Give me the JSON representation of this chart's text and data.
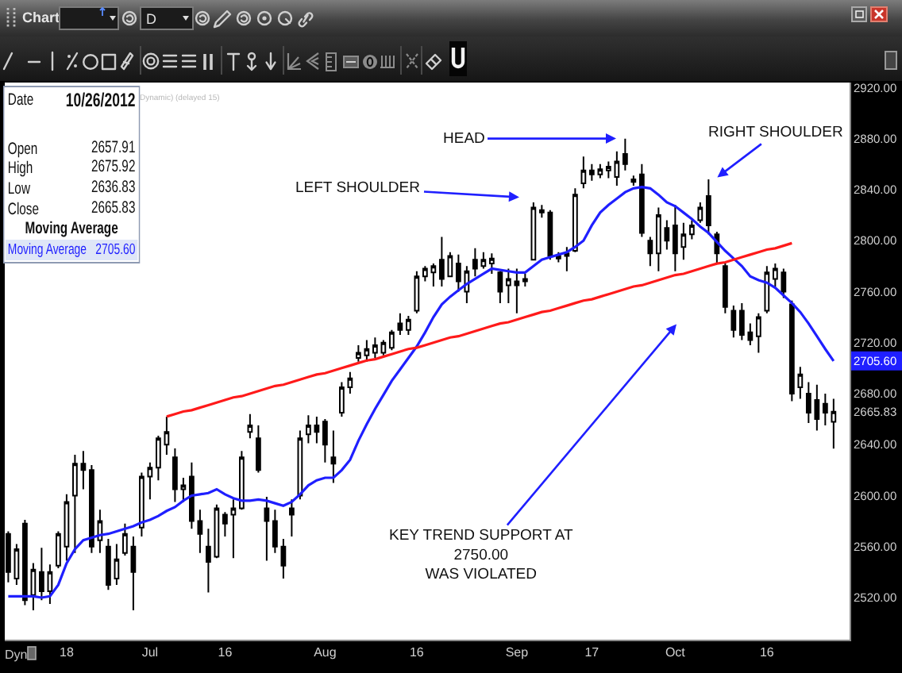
{
  "chart_data": {
    "type": "candlestick",
    "color": "#000000",
    "categories": [
      null,
      null,
      null,
      null,
      null,
      null,
      null,
      "18",
      null,
      null,
      null,
      null,
      null,
      null,
      null,
      null,
      null,
      "Jul",
      null,
      null,
      null,
      null,
      null,
      null,
      null,
      null,
      "16",
      null,
      null,
      null,
      null,
      null,
      null,
      null,
      null,
      null,
      null,
      null,
      "Aug",
      null,
      null,
      null,
      null,
      null,
      null,
      null,
      null,
      null,
      null,
      "16",
      null,
      null,
      null,
      null,
      null,
      null,
      null,
      null,
      null,
      null,
      null,
      "Sep",
      null,
      null,
      null,
      null,
      null,
      null,
      null,
      null,
      "17",
      null,
      null,
      null,
      null,
      null,
      null,
      null,
      null,
      null,
      "Oct",
      null,
      null,
      null,
      null,
      null,
      null,
      null,
      null,
      null,
      null,
      "16",
      null,
      null,
      null,
      null,
      null,
      null,
      null,
      null
    ],
    "ohlc": [
      [
        2570,
        2572,
        2532,
        2540
      ],
      [
        2535,
        2562,
        2530,
        2558
      ],
      [
        2578,
        2581,
        2514,
        2518
      ],
      [
        2522,
        2547,
        2510,
        2542
      ],
      [
        2540,
        2559,
        2518,
        2525
      ],
      [
        2525,
        2546,
        2515,
        2540
      ],
      [
        2545,
        2572,
        2543,
        2570
      ],
      [
        2560,
        2601,
        2549,
        2595
      ],
      [
        2600,
        2632,
        2555,
        2625
      ],
      [
        2625,
        2635,
        2605,
        2620
      ],
      [
        2620,
        2624,
        2555,
        2560
      ],
      [
        2565,
        2589,
        2555,
        2580
      ],
      [
        2560,
        2566,
        2526,
        2530
      ],
      [
        2535,
        2562,
        2530,
        2550
      ],
      [
        2555,
        2578,
        2553,
        2570
      ],
      [
        2560,
        2568,
        2510,
        2540
      ],
      [
        2575,
        2618,
        2568,
        2615
      ],
      [
        2615,
        2626,
        2597,
        2622
      ],
      [
        2622,
        2647,
        2612,
        2645
      ],
      [
        2640,
        2662,
        2632,
        2650
      ],
      [
        2630,
        2637,
        2595,
        2605
      ],
      [
        2605,
        2614,
        2595,
        2608
      ],
      [
        2615,
        2626,
        2574,
        2580
      ],
      [
        2580,
        2589,
        2555,
        2570
      ],
      [
        2560,
        2574,
        2524,
        2548
      ],
      [
        2552,
        2593,
        2551,
        2590
      ],
      [
        2585,
        2587,
        2568,
        2578
      ],
      [
        2585,
        2597,
        2551,
        2590
      ],
      [
        2590,
        2635,
        2589,
        2630
      ],
      [
        2650,
        2664,
        2645,
        2655
      ],
      [
        2645,
        2655,
        2618,
        2620
      ],
      [
        2590,
        2599,
        2549,
        2580
      ],
      [
        2580,
        2589,
        2555,
        2560
      ],
      [
        2560,
        2566,
        2535,
        2545
      ],
      [
        2590,
        2597,
        2568,
        2585
      ],
      [
        2600,
        2651,
        2597,
        2645
      ],
      [
        2648,
        2663,
        2641,
        2655
      ],
      [
        2655,
        2662,
        2641,
        2650
      ],
      [
        2658,
        2660,
        2626,
        2640
      ],
      [
        2630,
        2651,
        2610,
        2625
      ],
      [
        2665,
        2689,
        2662,
        2685
      ],
      [
        2685,
        2697,
        2680,
        2692
      ],
      [
        2708,
        2718,
        2705,
        2712
      ],
      [
        2710,
        2722,
        2705,
        2715
      ],
      [
        2712,
        2724,
        2708,
        2718
      ],
      [
        2712,
        2722,
        2710,
        2720
      ],
      [
        2716,
        2730,
        2714,
        2728
      ],
      [
        2735,
        2743,
        2726,
        2730
      ],
      [
        2730,
        2741,
        2726,
        2738
      ],
      [
        2745,
        2776,
        2743,
        2772
      ],
      [
        2772,
        2780,
        2768,
        2778
      ],
      [
        2775,
        2782,
        2764,
        2780
      ],
      [
        2785,
        2803,
        2764,
        2770
      ],
      [
        2772,
        2791,
        2772,
        2788
      ],
      [
        2782,
        2789,
        2760,
        2768
      ],
      [
        2760,
        2780,
        2751,
        2776
      ],
      [
        2785,
        2794,
        2772,
        2778
      ],
      [
        2780,
        2791,
        2778,
        2785
      ],
      [
        2782,
        2790,
        2774,
        2786
      ],
      [
        2775,
        2776,
        2751,
        2760
      ],
      [
        2765,
        2778,
        2751,
        2770
      ],
      [
        2768,
        2778,
        2743,
        2765
      ],
      [
        2768,
        2774,
        2764,
        2770
      ],
      [
        2785,
        2830,
        2785,
        2826
      ],
      [
        2822,
        2828,
        2818,
        2824
      ],
      [
        2822,
        2824,
        2785,
        2788
      ],
      [
        2788,
        2791,
        2783,
        2786
      ],
      [
        2788,
        2795,
        2776,
        2790
      ],
      [
        2792,
        2841,
        2791,
        2836
      ],
      [
        2845,
        2866,
        2841,
        2855
      ],
      [
        2855,
        2860,
        2847,
        2852
      ],
      [
        2852,
        2860,
        2849,
        2856
      ],
      [
        2855,
        2862,
        2849,
        2858
      ],
      [
        2850,
        2870,
        2843,
        2862
      ],
      [
        2868,
        2880,
        2855,
        2860
      ],
      [
        2846,
        2851,
        2843,
        2848
      ],
      [
        2852,
        2860,
        2803,
        2806
      ],
      [
        2800,
        2803,
        2780,
        2790
      ],
      [
        2790,
        2826,
        2776,
        2820
      ],
      [
        2810,
        2816,
        2793,
        2800
      ],
      [
        2812,
        2828,
        2776,
        2790
      ],
      [
        2795,
        2814,
        2785,
        2805
      ],
      [
        2805,
        2816,
        2801,
        2812
      ],
      [
        2816,
        2830,
        2814,
        2826
      ],
      [
        2835,
        2848,
        2805,
        2812
      ],
      [
        2805,
        2807,
        2782,
        2790
      ],
      [
        2780,
        2782,
        2743,
        2748
      ],
      [
        2745,
        2749,
        2724,
        2730
      ],
      [
        2745,
        2751,
        2722,
        2726
      ],
      [
        2728,
        2735,
        2718,
        2722
      ],
      [
        2725,
        2743,
        2712,
        2740
      ],
      [
        2745,
        2780,
        2743,
        2775
      ],
      [
        2770,
        2782,
        2764,
        2778
      ],
      [
        2775,
        2778,
        2755,
        2760
      ],
      [
        2750,
        2753,
        2674,
        2680
      ],
      [
        2685,
        2701,
        2676,
        2695
      ],
      [
        2680,
        2689,
        2657,
        2665
      ],
      [
        2675,
        2687,
        2651,
        2660
      ],
      [
        2672,
        2680,
        2655,
        2665
      ],
      [
        2657.91,
        2675.92,
        2636.83,
        2665.83
      ]
    ],
    "series": [
      {
        "name": "Moving Average",
        "type": "line",
        "color": "#1f1fff",
        "values": [
          2521,
          2521,
          2521,
          2521,
          2520,
          2521,
          2530,
          2547,
          2558,
          2565,
          2567,
          2569,
          2570,
          2572,
          2574,
          2576,
          2579,
          2581,
          2584,
          2588,
          2591,
          2596,
          2600,
          2601,
          2602,
          2605,
          2601,
          2598,
          2596,
          2596,
          2597,
          2596,
          2594,
          2592,
          2595,
          2601,
          2608,
          2612,
          2614,
          2614,
          2620,
          2628,
          2643,
          2656,
          2668,
          2679,
          2690,
          2699,
          2708,
          2717,
          2728,
          2740,
          2750,
          2756,
          2761,
          2766,
          2770,
          2774,
          2778,
          2777,
          2776,
          2775,
          2775,
          2780,
          2785,
          2787,
          2789,
          2791,
          2795,
          2800,
          2812,
          2822,
          2828,
          2833,
          2838,
          2841,
          2842,
          2841,
          2836,
          2830,
          2827,
          2822,
          2817,
          2811,
          2806,
          2799,
          2792,
          2786,
          2780,
          2772,
          2769,
          2767,
          2763,
          2757,
          2751,
          2744,
          2735,
          2725,
          2715,
          2705.6
        ]
      },
      {
        "type": "line",
        "color": "#ff1a1a",
        "values": [
          null,
          null,
          null,
          null,
          null,
          null,
          null,
          null,
          null,
          null,
          null,
          null,
          null,
          null,
          null,
          null,
          null,
          null,
          null,
          2662,
          2664,
          2666,
          2667,
          2669,
          2671,
          2673,
          2675,
          2677,
          2678,
          2680,
          2682,
          2684,
          2686,
          2687,
          2689,
          2691,
          2693,
          2695,
          2696,
          2698,
          2700,
          2702,
          2704,
          2706,
          2707,
          2709,
          2711,
          2713,
          2715,
          2716,
          2718,
          2720,
          2722,
          2724,
          2725,
          2727,
          2729,
          2731,
          2733,
          2735,
          2736,
          2738,
          2740,
          2742,
          2744,
          2745,
          2747,
          2749,
          2751,
          2753,
          2754,
          2756,
          2758,
          2760,
          2762,
          2764,
          2765,
          2767,
          2769,
          2771,
          2773,
          2774,
          2776,
          2778,
          2780,
          2782,
          2783,
          2785,
          2787,
          2789,
          2791,
          2793,
          2794,
          2796,
          2798,
          null,
          null,
          null,
          null,
          null
        ]
      }
    ],
    "ylim": [
      2487,
      2924
    ],
    "yticks": [
      {
        "value": 2520,
        "label": "2520.00"
      },
      {
        "value": 2560,
        "label": "2560.00"
      },
      {
        "value": 2600,
        "label": "2600.00"
      },
      {
        "value": 2640,
        "label": "2640.00"
      },
      {
        "value": 2665.83,
        "label": "2665.83"
      },
      {
        "value": 2680,
        "label": "2680.00"
      },
      {
        "value": 2705.6,
        "label": "2705.60"
      },
      {
        "value": 2720,
        "label": "2720.00"
      },
      {
        "value": 2760,
        "label": "2760.00"
      },
      {
        "value": 2800,
        "label": "2800.00"
      },
      {
        "value": 2840,
        "label": "2840.00"
      },
      {
        "value": 2880,
        "label": "2880.00"
      },
      {
        "value": 2920,
        "label": "2920.00"
      }
    ],
    "annotations": [
      "Chart",
      "D",
      "Date",
      "10/26/2012",
      "Dynamic) (delayed 15)",
      "Open",
      "2657.91",
      "High",
      "2675.92",
      "Low",
      "2636.83",
      "Close",
      "2665.83",
      "Moving Average",
      "2705.60",
      "Dyn",
      "HEAD",
      "LEFT SHOULDER",
      "RIGHT SHOULDER",
      "KEY TREND SUPPORT AT\n2750.00\nWAS VIOLATED"
    ]
  }
}
